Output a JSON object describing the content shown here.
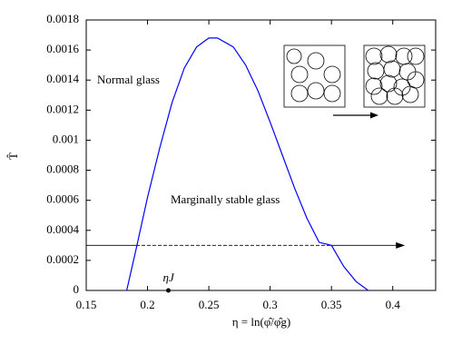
{
  "chart_data": {
    "type": "line",
    "x_label": "η = ln(φ̂/φ̂g)",
    "y_label": "T̂",
    "x": [
      0.183,
      0.19,
      0.2,
      0.21,
      0.22,
      0.23,
      0.24,
      0.25,
      0.257,
      0.27,
      0.28,
      0.29,
      0.3,
      0.31,
      0.32,
      0.33,
      0.34,
      0.35,
      0.36,
      0.37,
      0.38
    ],
    "series": [
      {
        "color": "#0000ff",
        "values": [
          0,
          0.00025,
          0.00062,
          0.00095,
          0.00125,
          0.00148,
          0.00162,
          0.00168,
          0.00168,
          0.00162,
          0.0015,
          0.00133,
          0.00112,
          0.0009,
          0.00068,
          0.00048,
          0.00032,
          0.0003,
          0.00016,
          6e-05,
          0
        ]
      }
    ],
    "xlim": [
      0.15,
      0.435
    ],
    "ylim": [
      0,
      0.0018
    ],
    "xticks": [
      0.15,
      0.2,
      0.25,
      0.3,
      0.35,
      0.4
    ],
    "yticks": [
      0,
      0.0002,
      0.0004,
      0.0006,
      0.0008,
      0.001,
      0.0012,
      0.0014,
      0.0016,
      0.0018
    ],
    "annotations": [
      "Normal glass",
      "Marginally stable glass"
    ],
    "point": {
      "label": "ηJ",
      "x": 0.217,
      "y": 0
    },
    "arrow": {
      "y": 0.0003,
      "x": [
        0.15,
        0.41
      ],
      "dashed": [
        0.1907,
        0.35
      ]
    }
  }
}
